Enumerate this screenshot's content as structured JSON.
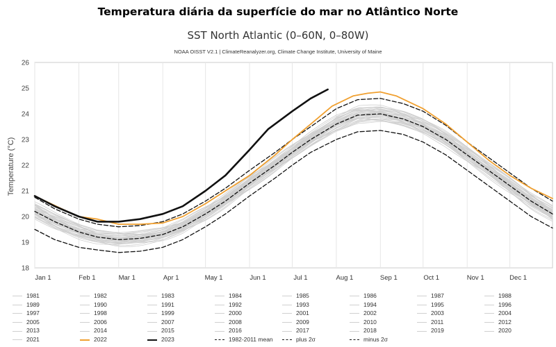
{
  "headline": "Temperatura diária da superfície do mar no Atlântico Norte",
  "chart_data": {
    "type": "line",
    "title": "SST North Atlantic (0–60N, 0–80W)",
    "subtitle": "NOAA OISST V2.1 | ClimateReanalyzer.org, Climate Change Institute, University of Maine",
    "ylabel": "Temperature (°C)",
    "xlabel": "",
    "ylim": [
      18,
      26
    ],
    "yticks": [
      18,
      19,
      20,
      21,
      22,
      23,
      24,
      25,
      26
    ],
    "xlim": [
      1,
      365
    ],
    "xticks": [
      {
        "day": 1,
        "label": "Jan 1"
      },
      {
        "day": 32,
        "label": "Feb 1"
      },
      {
        "day": 60,
        "label": "Mar 1"
      },
      {
        "day": 91,
        "label": "Apr 1"
      },
      {
        "day": 121,
        "label": "May 1"
      },
      {
        "day": 152,
        "label": "Jun 1"
      },
      {
        "day": 182,
        "label": "Jul 1"
      },
      {
        "day": 213,
        "label": "Aug 1"
      },
      {
        "day": 244,
        "label": "Sep 1"
      },
      {
        "day": 274,
        "label": "Oct 1"
      },
      {
        "day": 305,
        "label": "Nov 1"
      },
      {
        "day": 335,
        "label": "Dec 1"
      }
    ],
    "grid": "vertical",
    "legend_position": "bottom",
    "colors": {
      "past_years": "#cfcfcf",
      "2022": "#f0a030",
      "2023": "#111111",
      "stats": "#111111"
    },
    "series": [
      {
        "name": "2023",
        "color": "#111111",
        "x": [
          1,
          15,
          32,
          45,
          60,
          75,
          91,
          105,
          121,
          135,
          152,
          165,
          182,
          195,
          207
        ],
        "y": [
          20.8,
          20.4,
          20.0,
          19.8,
          19.8,
          19.9,
          20.1,
          20.4,
          21.0,
          21.6,
          22.6,
          23.4,
          24.1,
          24.6,
          24.95
        ]
      },
      {
        "name": "2022",
        "color": "#f0a030",
        "x": [
          1,
          20,
          32,
          45,
          60,
          75,
          91,
          105,
          121,
          135,
          152,
          170,
          182,
          195,
          210,
          225,
          235,
          244,
          255,
          274,
          290,
          305,
          320,
          335,
          350,
          365
        ],
        "y": [
          20.8,
          20.3,
          20.0,
          19.9,
          19.7,
          19.7,
          19.75,
          20.0,
          20.5,
          21.0,
          21.6,
          22.4,
          23.0,
          23.6,
          24.3,
          24.7,
          24.8,
          24.85,
          24.7,
          24.2,
          23.6,
          22.9,
          22.2,
          21.6,
          21.1,
          20.7
        ]
      },
      {
        "name": "1982-2011 mean",
        "color": "#111111",
        "dash": "mean",
        "x": [
          1,
          15,
          32,
          45,
          60,
          75,
          91,
          105,
          121,
          135,
          152,
          170,
          182,
          195,
          213,
          228,
          244,
          260,
          274,
          290,
          305,
          320,
          335,
          350,
          365
        ],
        "y": [
          20.2,
          19.8,
          19.4,
          19.2,
          19.1,
          19.15,
          19.3,
          19.6,
          20.1,
          20.6,
          21.3,
          22.0,
          22.5,
          23.0,
          23.6,
          23.95,
          24.0,
          23.8,
          23.5,
          23.0,
          22.4,
          21.8,
          21.2,
          20.6,
          20.1
        ]
      },
      {
        "name": "plus 2σ",
        "color": "#111111",
        "dash": "plus",
        "x": [
          1,
          15,
          32,
          45,
          60,
          75,
          91,
          105,
          121,
          135,
          152,
          170,
          182,
          195,
          213,
          228,
          244,
          260,
          274,
          290,
          305,
          320,
          335,
          350,
          365
        ],
        "y": [
          20.75,
          20.3,
          19.9,
          19.7,
          19.6,
          19.65,
          19.8,
          20.1,
          20.6,
          21.1,
          21.8,
          22.5,
          23.0,
          23.5,
          24.2,
          24.55,
          24.6,
          24.4,
          24.1,
          23.55,
          22.9,
          22.3,
          21.7,
          21.1,
          20.6
        ]
      },
      {
        "name": "minus 2σ",
        "color": "#111111",
        "dash": "minus",
        "x": [
          1,
          15,
          32,
          45,
          60,
          75,
          91,
          105,
          121,
          135,
          152,
          170,
          182,
          195,
          213,
          228,
          244,
          260,
          274,
          290,
          305,
          320,
          335,
          350,
          365
        ],
        "y": [
          19.5,
          19.1,
          18.8,
          18.7,
          18.6,
          18.65,
          18.8,
          19.1,
          19.6,
          20.1,
          20.8,
          21.5,
          22.0,
          22.5,
          23.0,
          23.3,
          23.35,
          23.2,
          22.9,
          22.4,
          21.8,
          21.2,
          20.6,
          20.0,
          19.55
        ]
      }
    ],
    "legend": [
      "1981",
      "1982",
      "1983",
      "1984",
      "1985",
      "1986",
      "1987",
      "1988",
      "1989",
      "1990",
      "1991",
      "1992",
      "1993",
      "1994",
      "1995",
      "1996",
      "1997",
      "1998",
      "1999",
      "2000",
      "2001",
      "2002",
      "2003",
      "2004",
      "2005",
      "2006",
      "2007",
      "2008",
      "2009",
      "2010",
      "2011",
      "2012",
      "2013",
      "2014",
      "2015",
      "2016",
      "2017",
      "2018",
      "2019",
      "2020",
      "2021",
      "2022",
      "2023",
      "1982-2011 mean",
      "plus 2σ",
      "minus 2σ"
    ]
  }
}
